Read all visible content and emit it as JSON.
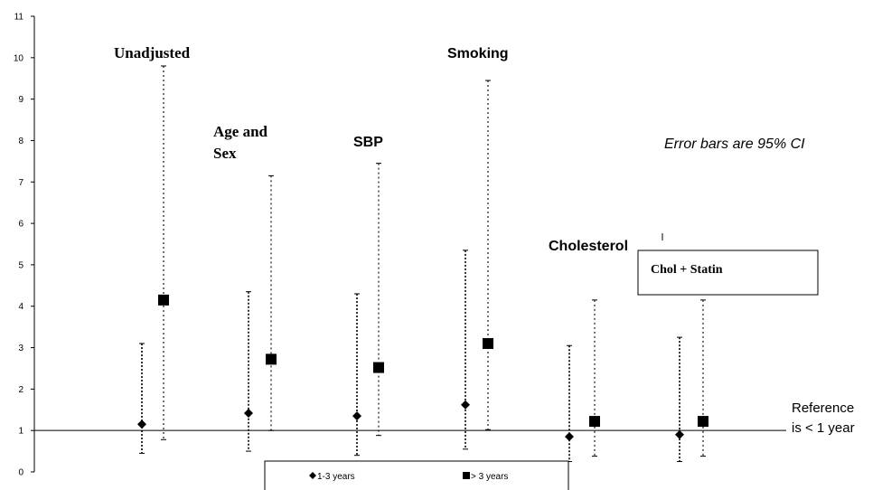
{
  "chart_data": {
    "type": "scatter",
    "ylim": [
      0,
      11
    ],
    "yticks": [
      "0",
      "1",
      "2",
      "3",
      "4",
      "5",
      "6",
      "7",
      "8",
      "9",
      "10",
      "11"
    ],
    "grid": false,
    "groups": [
      "Unadjusted",
      "Age and Sex",
      "SBP",
      "Smoking",
      "Cholesterol",
      "Chol + Statin"
    ],
    "series": [
      {
        "name": "1-3 years",
        "marker": "diamond",
        "values": [
          1.15,
          1.42,
          1.35,
          1.62,
          0.85,
          0.9
        ],
        "ci_low": [
          0.45,
          0.5,
          0.4,
          0.55,
          0.25,
          0.25
        ],
        "ci_high": [
          3.1,
          4.35,
          4.3,
          5.35,
          3.05,
          3.25
        ]
      },
      {
        "name": "> 3 years",
        "marker": "square",
        "values": [
          4.15,
          2.72,
          2.52,
          3.1,
          1.22,
          1.22
        ],
        "ci_low": [
          0.78,
          1.0,
          0.88,
          1.02,
          0.38,
          0.38
        ],
        "ci_high": [
          9.8,
          7.15,
          7.45,
          9.45,
          4.15,
          4.15
        ]
      }
    ],
    "reference_line": 1,
    "reference_label_line1": "Reference",
    "reference_label_line2": "is < 1 year",
    "annotation": "Error bars are 95% CI",
    "legend_position": "bottom-center",
    "labels": {
      "unadjusted": "Unadjusted",
      "age_line1": "Age and",
      "age_line2": "Sex",
      "sbp": "SBP",
      "smoking": "Smoking",
      "cholesterol": "Cholesterol",
      "chol_statin": "Chol + Statin"
    }
  }
}
